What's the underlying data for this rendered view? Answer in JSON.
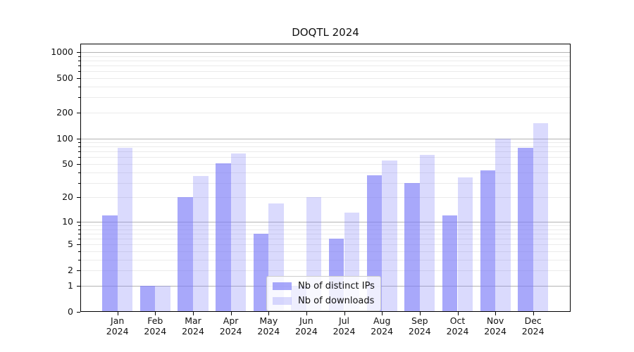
{
  "title": "DOQTL 2024",
  "chart_data": {
    "type": "bar",
    "title": "DOQTL 2024",
    "months": [
      {
        "m": "Jan",
        "y": "2024"
      },
      {
        "m": "Feb",
        "y": "2024"
      },
      {
        "m": "Mar",
        "y": "2024"
      },
      {
        "m": "Apr",
        "y": "2024"
      },
      {
        "m": "May",
        "y": "2024"
      },
      {
        "m": "Jun",
        "y": "2024"
      },
      {
        "m": "Jul",
        "y": "2024"
      },
      {
        "m": "Aug",
        "y": "2024"
      },
      {
        "m": "Sep",
        "y": "2024"
      },
      {
        "m": "Oct",
        "y": "2024"
      },
      {
        "m": "Nov",
        "y": "2024"
      },
      {
        "m": "Dec",
        "y": "2024"
      }
    ],
    "series": [
      {
        "name": "Nb of distinct IPs",
        "color": "rgba(121,121,247,0.65)",
        "values": [
          12,
          1,
          20,
          51,
          7,
          1,
          6,
          37,
          30,
          12,
          42,
          78
        ]
      },
      {
        "name": "Nb of downloads",
        "color": "rgba(121,121,247,0.28)",
        "values": [
          77,
          1,
          36,
          66,
          17,
          20,
          13,
          55,
          64,
          35,
          100,
          150
        ]
      }
    ],
    "y_axis": {
      "scale": "log1p",
      "tick_labels": [
        "0",
        "1",
        "2",
        "5",
        "10",
        "20",
        "50",
        "100",
        "200",
        "500",
        "1000"
      ],
      "major_grid_values": [
        1,
        10,
        100,
        1000
      ],
      "ylim": [
        0,
        1250
      ],
      "grid": true
    },
    "legend_position": "lower center"
  }
}
